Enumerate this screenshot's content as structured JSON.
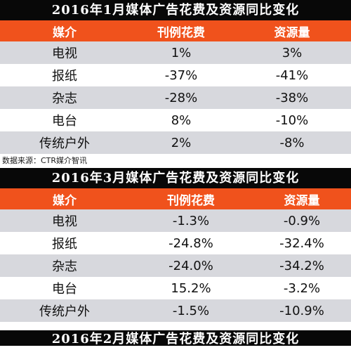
{
  "table1": {
    "title": "2016年1月媒体广告花费及资源同比变化",
    "headers": [
      "媒介",
      "刊例花费",
      "资源量"
    ],
    "rows": [
      [
        "电视",
        "1%",
        "3%"
      ],
      [
        "报纸",
        "-37%",
        "-41%"
      ],
      [
        "杂志",
        "-28%",
        "-38%"
      ],
      [
        "电台",
        "8%",
        "-10%"
      ],
      [
        "传统户外",
        "2%",
        "-8%"
      ]
    ]
  },
  "source_note": "数据来源：CTR媒介智讯",
  "table2": {
    "title": "2016年3月媒体广告花费及资源同比变化",
    "headers": [
      "媒介",
      "刊例花费",
      "资源量"
    ],
    "rows": [
      [
        "电视",
        "-1.3%",
        "-0.9%"
      ],
      [
        "报纸",
        "-24.8%",
        "-32.4%"
      ],
      [
        "杂志",
        "-24.0%",
        "-34.2%"
      ],
      [
        "电台",
        "15.2%",
        "-3.2%"
      ],
      [
        "传统户外",
        "-1.5%",
        "-10.9%"
      ]
    ]
  },
  "table3": {
    "title": "2016年2月媒体广告花费及资源同比变化"
  },
  "colors": {
    "title_bg": "#080808",
    "header_bg": "#f0521c",
    "row_alt_bg": "#d7d8dd"
  }
}
